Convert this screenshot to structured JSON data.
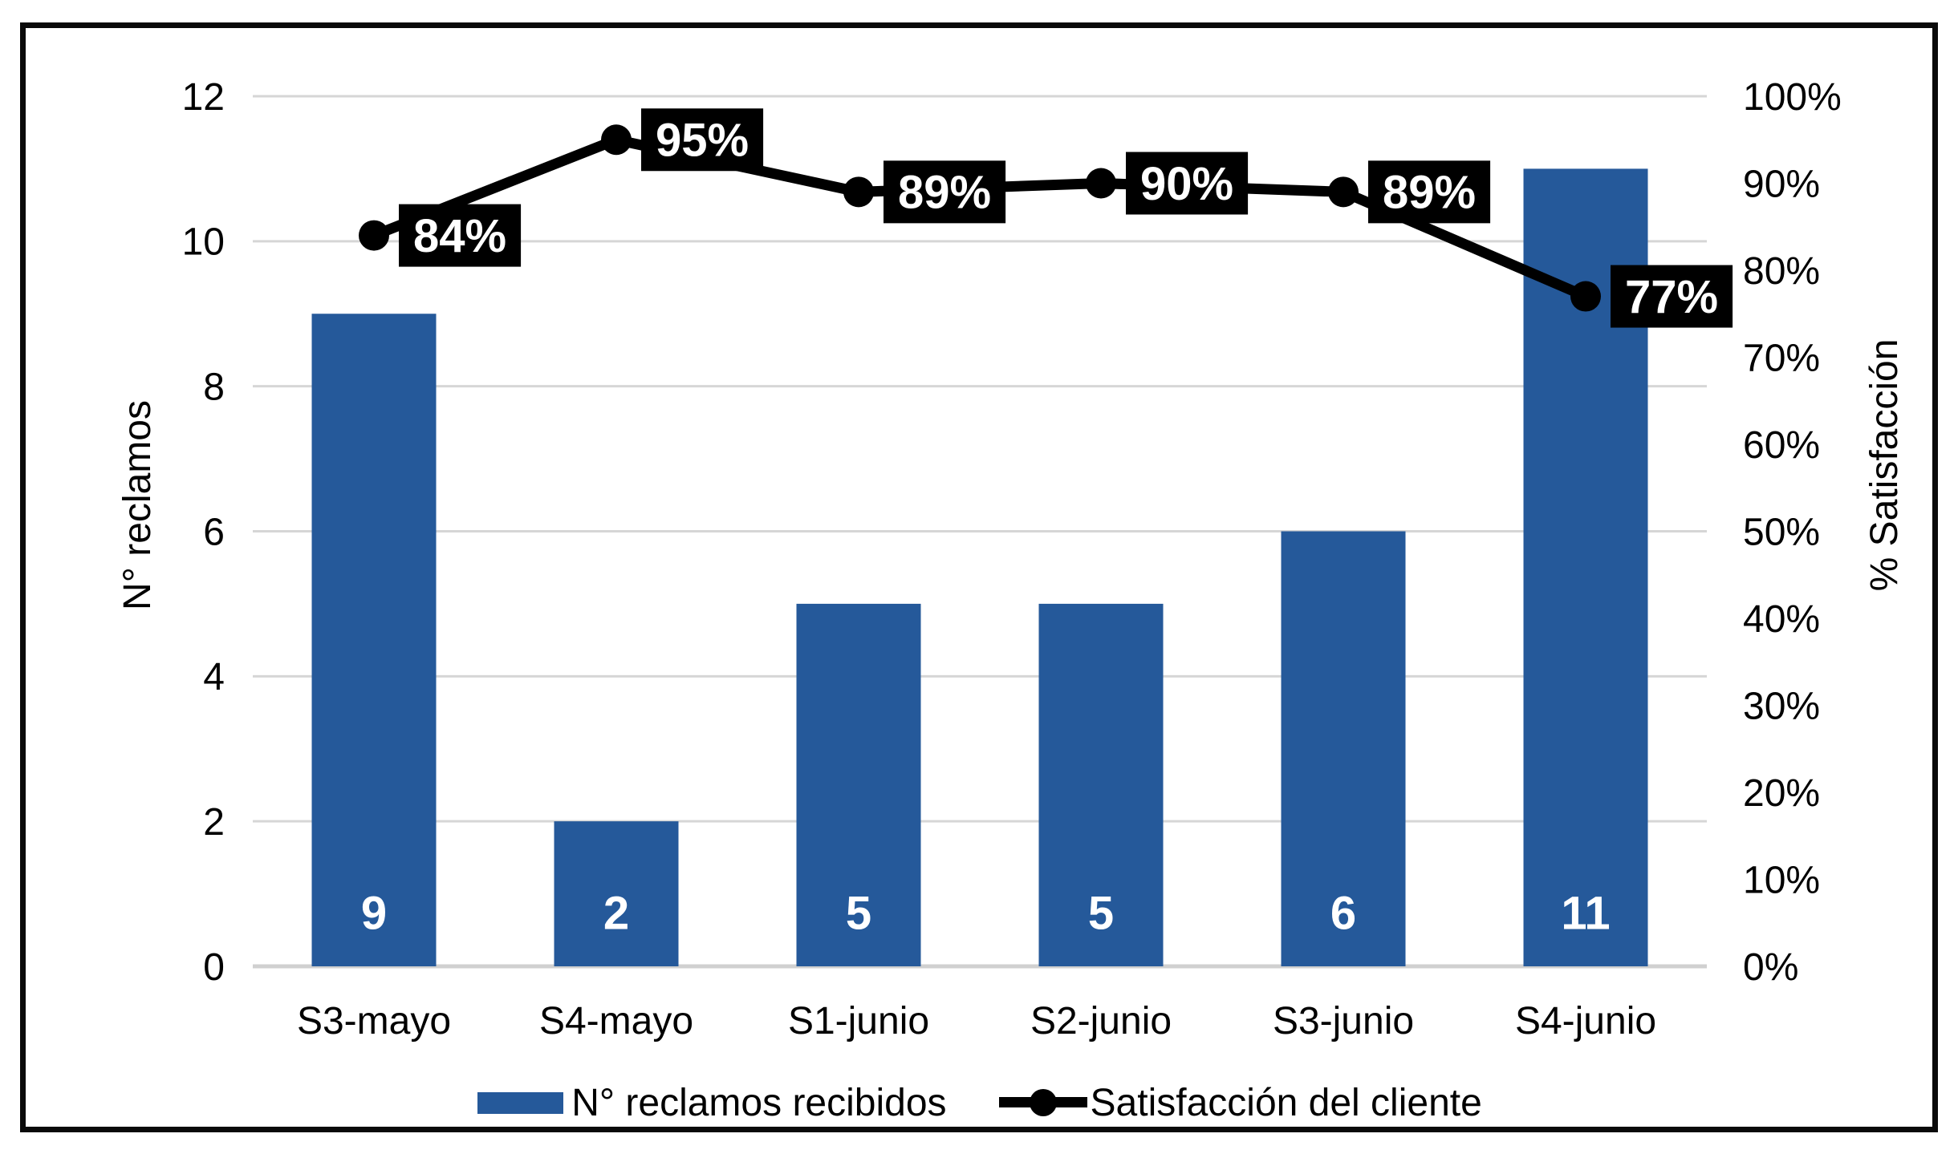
{
  "chart_data": {
    "type": "combo-bar-line",
    "title": "",
    "categories": [
      "S3-mayo",
      "S4-mayo",
      "S1-junio",
      "S2-junio",
      "S3-junio",
      "S4-junio"
    ],
    "series": [
      {
        "name": "N° reclamos recibidos",
        "type": "bar",
        "axis": "left",
        "values": [
          9,
          2,
          5,
          5,
          6,
          11
        ],
        "value_labels": [
          "9",
          "2",
          "5",
          "5",
          "6",
          "11"
        ]
      },
      {
        "name": "Satisfacción del cliente",
        "type": "line",
        "axis": "right",
        "values": [
          84,
          95,
          89,
          90,
          89,
          77
        ],
        "value_labels": [
          "84%",
          "95%",
          "89%",
          "90%",
          "89%",
          "77%"
        ]
      }
    ],
    "left_axis": {
      "title": "N° reclamos",
      "min": 0,
      "max": 12,
      "step": 2,
      "ticks": [
        "12",
        "10",
        "8",
        "6",
        "4",
        "2",
        "0"
      ]
    },
    "right_axis": {
      "title": "% Satisfacción",
      "min": 0,
      "max": 100,
      "step": 10,
      "ticks": [
        "100%",
        "90%",
        "80%",
        "70%",
        "60%",
        "50%",
        "40%",
        "30%",
        "20%",
        "10%",
        "0%"
      ]
    },
    "grid": true,
    "legend_position": "bottom",
    "colors": {
      "bar": "#25599A",
      "line": "#000000",
      "data_label_bg": "#000000",
      "data_label_text": "#FFFFFF",
      "bar_label_text": "#FFFFFF",
      "gridline": "#D6D6D6",
      "baseline": "#D0D0D0",
      "tick_text": "#000000",
      "frame_border": "#0A0A0A"
    }
  }
}
